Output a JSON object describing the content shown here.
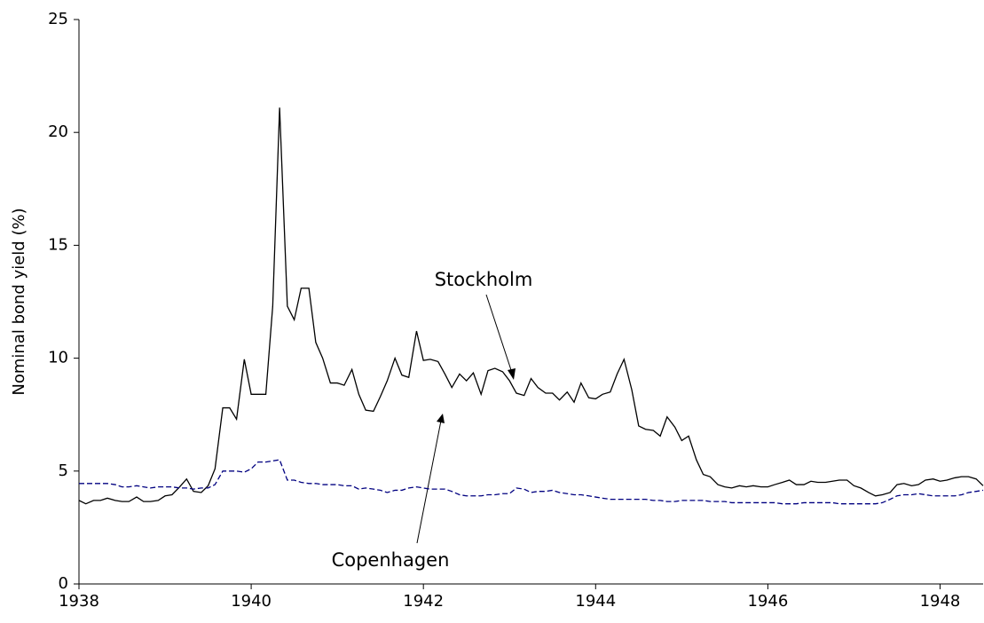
{
  "chart_data": {
    "type": "line",
    "y_label": "Nominal bond yield (%)",
    "x": [
      1938,
      1938.08,
      1938.17,
      1938.25,
      1938.33,
      1938.42,
      1938.5,
      1938.58,
      1938.67,
      1938.75,
      1938.83,
      1938.92,
      1939,
      1939.08,
      1939.17,
      1939.25,
      1939.33,
      1939.42,
      1939.5,
      1939.58,
      1939.67,
      1939.75,
      1939.83,
      1939.92,
      1940,
      1940.08,
      1940.17,
      1940.25,
      1940.33,
      1940.42,
      1940.5,
      1940.58,
      1940.67,
      1940.75,
      1940.83,
      1940.92,
      1941,
      1941.08,
      1941.17,
      1941.25,
      1941.33,
      1941.42,
      1941.5,
      1941.58,
      1941.67,
      1941.75,
      1941.83,
      1941.92,
      1942,
      1942.08,
      1942.17,
      1942.25,
      1942.33,
      1942.42,
      1942.5,
      1942.58,
      1942.67,
      1942.75,
      1942.83,
      1942.92,
      1943,
      1943.08,
      1943.17,
      1943.25,
      1943.33,
      1943.42,
      1943.5,
      1943.58,
      1943.67,
      1943.75,
      1943.83,
      1943.92,
      1944,
      1944.08,
      1944.17,
      1944.25,
      1944.33,
      1944.42,
      1944.5,
      1944.58,
      1944.67,
      1944.75,
      1944.83,
      1944.92,
      1945,
      1945.08,
      1945.17,
      1945.25,
      1945.33,
      1945.42,
      1945.5,
      1945.58,
      1945.67,
      1945.75,
      1945.83,
      1945.92,
      1946,
      1946.08,
      1946.17,
      1946.25,
      1946.33,
      1946.42,
      1946.5,
      1946.58,
      1946.67,
      1946.75,
      1946.83,
      1946.92,
      1947,
      1947.08,
      1947.17,
      1947.25,
      1947.33,
      1947.42,
      1947.5,
      1947.58,
      1947.67,
      1947.75,
      1947.83,
      1947.92,
      1948,
      1948.08,
      1948.17,
      1948.25,
      1948.33,
      1948.42,
      1948.5
    ],
    "series": [
      {
        "name": "Stockholm",
        "color": "#000000",
        "dash": "solid",
        "values": [
          3.7,
          3.55,
          3.7,
          3.7,
          3.8,
          3.7,
          3.65,
          3.65,
          3.85,
          3.65,
          3.65,
          3.7,
          3.9,
          3.95,
          4.3,
          4.65,
          4.1,
          4.05,
          4.35,
          5.1,
          7.8,
          7.8,
          7.3,
          9.95,
          8.4,
          8.4,
          8.4,
          12.3,
          21.1,
          12.3,
          11.7,
          13.1,
          13.1,
          10.7,
          10.0,
          8.9,
          8.9,
          8.8,
          9.5,
          8.4,
          7.7,
          7.65,
          8.3,
          9.0,
          10.0,
          9.25,
          9.15,
          11.2,
          9.9,
          9.95,
          9.85,
          9.3,
          8.7,
          9.3,
          9.0,
          9.35,
          8.4,
          9.45,
          9.55,
          9.4,
          9.0,
          8.45,
          8.35,
          9.1,
          8.7,
          8.45,
          8.45,
          8.15,
          8.5,
          8.05,
          8.9,
          8.25,
          8.2,
          8.4,
          8.5,
          9.3,
          9.95,
          8.6,
          7.0,
          6.85,
          6.8,
          6.55,
          7.4,
          6.95,
          6.35,
          6.55,
          5.5,
          4.85,
          4.75,
          4.4,
          4.3,
          4.25,
          4.35,
          4.3,
          4.35,
          4.3,
          4.3,
          4.4,
          4.5,
          4.6,
          4.4,
          4.4,
          4.55,
          4.5,
          4.5,
          4.55,
          4.6,
          4.6,
          4.35,
          4.25,
          4.05,
          3.9,
          3.95,
          4.05,
          4.4,
          4.45,
          4.35,
          4.4,
          4.6,
          4.65,
          4.55,
          4.6,
          4.7,
          4.75,
          4.75,
          4.65,
          4.35
        ]
      },
      {
        "name": "Copenhagen",
        "color": "#000080",
        "dash": "dashed",
        "values": [
          4.45,
          4.45,
          4.45,
          4.45,
          4.45,
          4.4,
          4.3,
          4.3,
          4.35,
          4.3,
          4.25,
          4.3,
          4.3,
          4.3,
          4.25,
          4.25,
          4.2,
          4.25,
          4.25,
          4.4,
          5.0,
          5.0,
          5.0,
          4.95,
          5.1,
          5.4,
          5.4,
          5.45,
          5.5,
          4.6,
          4.6,
          4.5,
          4.45,
          4.45,
          4.4,
          4.4,
          4.4,
          4.35,
          4.35,
          4.2,
          4.25,
          4.2,
          4.15,
          4.05,
          4.15,
          4.15,
          4.25,
          4.3,
          4.25,
          4.2,
          4.2,
          4.2,
          4.1,
          3.95,
          3.9,
          3.9,
          3.9,
          3.95,
          3.95,
          4.0,
          4.0,
          4.25,
          4.2,
          4.05,
          4.1,
          4.1,
          4.15,
          4.05,
          4.0,
          3.95,
          3.95,
          3.9,
          3.85,
          3.8,
          3.75,
          3.75,
          3.75,
          3.75,
          3.75,
          3.75,
          3.7,
          3.7,
          3.65,
          3.65,
          3.7,
          3.7,
          3.7,
          3.7,
          3.65,
          3.65,
          3.65,
          3.6,
          3.6,
          3.6,
          3.6,
          3.6,
          3.6,
          3.6,
          3.55,
          3.55,
          3.55,
          3.6,
          3.6,
          3.6,
          3.6,
          3.6,
          3.55,
          3.55,
          3.55,
          3.55,
          3.55,
          3.55,
          3.6,
          3.75,
          3.9,
          3.95,
          3.95,
          4.0,
          3.95,
          3.9,
          3.9,
          3.9,
          3.9,
          3.95,
          4.05,
          4.1,
          4.15
        ]
      }
    ],
    "xlim": [
      1938,
      1948.5
    ],
    "xticks": [
      1938,
      1940,
      1942,
      1944,
      1946,
      1948
    ],
    "ylim": [
      0,
      25
    ],
    "yticks": [
      0,
      5,
      10,
      15,
      20,
      25
    ],
    "grid": false
  }
}
